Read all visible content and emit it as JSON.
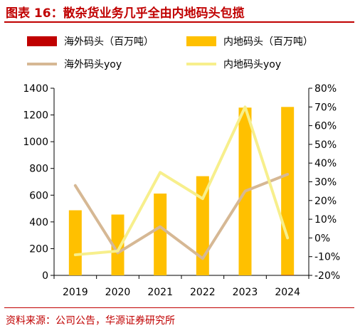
{
  "page": {
    "title": "图表 16：散杂货业务几乎全由内地码头包揽",
    "source": "资料来源：公司公告，华源证券研究所"
  },
  "chart_data": {
    "type": "bar+line",
    "categories": [
      "2019",
      "2020",
      "2021",
      "2022",
      "2023",
      "2024"
    ],
    "series": [
      {
        "name": "海外码头（百万吨）",
        "type": "bar",
        "axis": "left",
        "color": "#c00000",
        "values": [
          0,
          0,
          0,
          0,
          0,
          2
        ]
      },
      {
        "name": "内地码头（百万吨）",
        "type": "bar",
        "axis": "left",
        "color": "#ffc000",
        "values": [
          487,
          455,
          612,
          742,
          1255,
          1258
        ]
      },
      {
        "name": "海外码头yoy",
        "type": "line",
        "axis": "right",
        "color": "#d6b894",
        "values": [
          28,
          -8,
          6,
          -11,
          25,
          34
        ]
      },
      {
        "name": "内地码头yoy",
        "type": "line",
        "axis": "right",
        "color": "#f7ef8c",
        "values": [
          -9,
          -7,
          35,
          21,
          70,
          0
        ]
      }
    ],
    "y_left": {
      "min": 0,
      "max": 1400,
      "step": 200,
      "ticks": [
        "0",
        "200",
        "400",
        "600",
        "800",
        "1000",
        "1200",
        "1400"
      ]
    },
    "y_right": {
      "min": -20,
      "max": 80,
      "step": 10,
      "ticks": [
        "-20%",
        "-10%",
        "0%",
        "10%",
        "20%",
        "30%",
        "40%",
        "50%",
        "60%",
        "70%",
        "80%"
      ]
    },
    "grid": false,
    "legend_position": "top"
  }
}
